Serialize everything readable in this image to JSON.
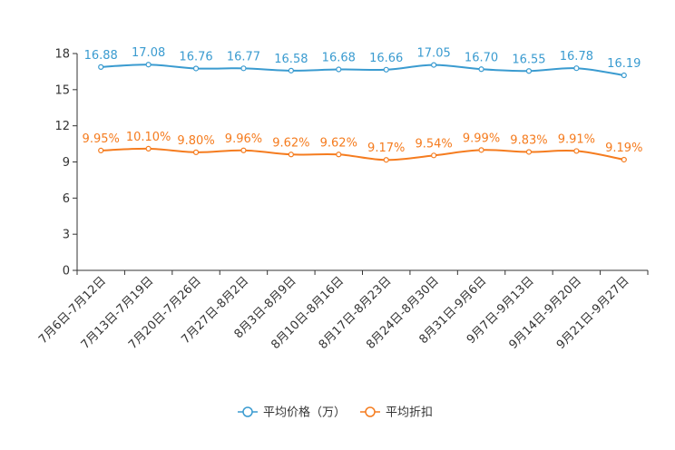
{
  "chart_data": {
    "type": "line",
    "title": "",
    "xlabel": "",
    "ylabel": "",
    "ylim": [
      0,
      18
    ],
    "yticks": [
      0,
      3,
      6,
      9,
      12,
      15,
      18
    ],
    "grid": false,
    "legend_position": "bottom-center",
    "categories": [
      "7月6日-7月12日",
      "7月13日-7月19日",
      "7月20日-7月26日",
      "7月27日-8月2日",
      "8月3日-8月9日",
      "8月10日-8月16日",
      "8月17日-8月23日",
      "8月24日-8月30日",
      "8月31日-9月6日",
      "9月7日-9月13日",
      "9月14日-9月20日",
      "9月21日-9月27日"
    ],
    "series": [
      {
        "name": "平均价格（万）",
        "color": "#3a9bd0",
        "values": [
          16.88,
          17.08,
          16.76,
          16.77,
          16.58,
          16.68,
          16.66,
          17.05,
          16.7,
          16.55,
          16.78,
          16.19
        ],
        "labels": [
          "16.88",
          "17.08",
          "16.76",
          "16.77",
          "16.58",
          "16.68",
          "16.66",
          "17.05",
          "16.70",
          "16.55",
          "16.78",
          "16.19"
        ]
      },
      {
        "name": "平均折扣",
        "color": "#f57c1f",
        "values": [
          9.95,
          10.1,
          9.8,
          9.96,
          9.62,
          9.62,
          9.17,
          9.54,
          9.99,
          9.83,
          9.91,
          9.19
        ],
        "labels": [
          "9.95%",
          "10.10%",
          "9.80%",
          "9.96%",
          "9.62%",
          "9.62%",
          "9.17%",
          "9.54%",
          "9.99%",
          "9.83%",
          "9.91%",
          "9.19%"
        ]
      }
    ]
  }
}
